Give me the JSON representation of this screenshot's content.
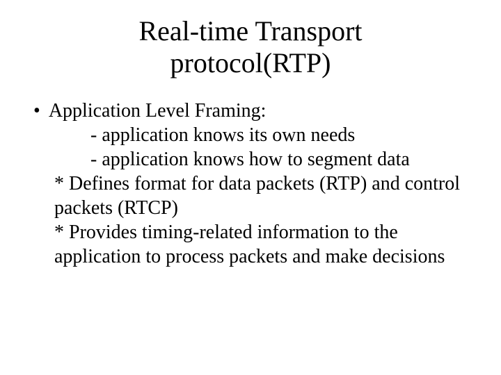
{
  "title": {
    "line1": "Real-time Transport",
    "line2": "protocol(RTP)"
  },
  "content": {
    "bullet_label": "Application Level Framing:",
    "sub1": "- application knows its own needs",
    "sub2": "- application knows how to segment data",
    "star1": "* Defines format for data packets (RTP) and control packets (RTCP)",
    "star2": "* Provides timing-related information to the application to process packets and make decisions"
  },
  "colors": {
    "background": "#ffffff",
    "text": "#000000"
  },
  "typography": {
    "title_fontsize": 40,
    "body_fontsize": 28,
    "font_family": "Times New Roman"
  }
}
